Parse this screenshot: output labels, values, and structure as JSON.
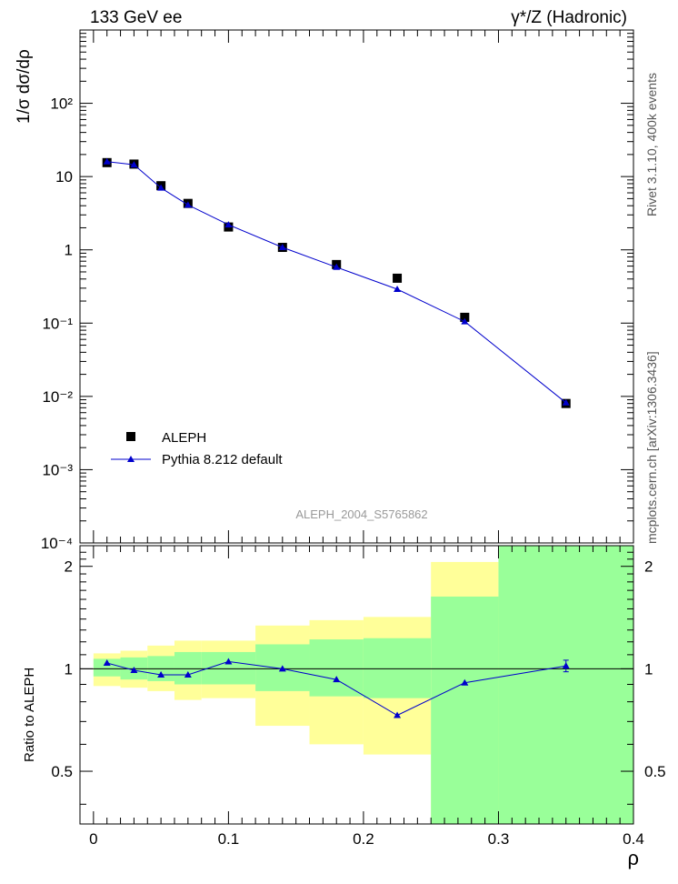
{
  "header": {
    "left": "133 GeV ee",
    "right": "γ*/Z (Hadronic)"
  },
  "side_text": {
    "top": "Rivet 3.1.10,  400k events",
    "bottom": "mcplots.cern.ch [arXiv:1306.3436]"
  },
  "watermark": "ALEPH_2004_S5765862",
  "legend": {
    "data_label": "ALEPH",
    "mc_label": "Pythia 8.212 default"
  },
  "colors": {
    "mc": "#0000cc",
    "data": "#000000",
    "band_inner": "#99ff99",
    "band_outer": "#ffff99"
  },
  "chart_data": [
    {
      "type": "scatter",
      "title": "",
      "ylabel": "1/σ  dσ/dρ",
      "xlabel": "",
      "yscale": "log",
      "ylim": [
        0.0001,
        1000
      ],
      "xlim": [
        -0.01,
        0.4
      ],
      "ytick_labels": [
        "10⁻⁴",
        "10⁻³",
        "10⁻²",
        "10⁻¹",
        "1",
        "10",
        "10²"
      ],
      "series": [
        {
          "name": "ALEPH",
          "x": [
            0.01,
            0.03,
            0.05,
            0.07,
            0.1,
            0.14,
            0.18,
            0.225,
            0.275,
            0.35
          ],
          "y": [
            15.5,
            14.8,
            7.5,
            4.3,
            2.05,
            1.08,
            0.63,
            0.41,
            0.12,
            0.008
          ]
        },
        {
          "name": "Pythia 8.212 default",
          "x": [
            0.01,
            0.03,
            0.05,
            0.07,
            0.1,
            0.14,
            0.18,
            0.225,
            0.275,
            0.35
          ],
          "y": [
            16.0,
            14.5,
            7.0,
            4.1,
            2.2,
            1.08,
            0.58,
            0.29,
            0.105,
            0.0082
          ]
        }
      ]
    },
    {
      "type": "line",
      "title": "",
      "ylabel": "Ratio to ALEPH",
      "xlabel": "ρ",
      "ylim": [
        0.35,
        2.3
      ],
      "xlim": [
        -0.01,
        0.4
      ],
      "ytick_labels": [
        "0.5",
        "1",
        "2"
      ],
      "xtick_labels": [
        "0",
        "0.1",
        "0.2",
        "0.3",
        "0.4"
      ],
      "bin_edges": [
        0,
        0.02,
        0.04,
        0.06,
        0.08,
        0.12,
        0.16,
        0.2,
        0.25,
        0.3,
        0.4
      ],
      "band_inner_low": [
        0.95,
        0.93,
        0.92,
        0.9,
        0.9,
        0.86,
        0.83,
        0.82,
        0.33,
        0.33
      ],
      "band_inner_high": [
        1.07,
        1.08,
        1.09,
        1.12,
        1.12,
        1.18,
        1.22,
        1.23,
        1.63,
        2.3
      ],
      "band_outer_low": [
        0.89,
        0.88,
        0.86,
        0.81,
        0.82,
        0.68,
        0.6,
        0.56,
        0.33,
        0.41
      ],
      "band_outer_high": [
        1.11,
        1.13,
        1.17,
        1.21,
        1.21,
        1.34,
        1.39,
        1.42,
        2.06,
        2.3
      ],
      "series": [
        {
          "name": "Pythia 8.212 default",
          "x": [
            0.01,
            0.03,
            0.05,
            0.07,
            0.1,
            0.14,
            0.18,
            0.225,
            0.275,
            0.35
          ],
          "y": [
            1.04,
            0.99,
            0.96,
            0.96,
            1.05,
            1.0,
            0.93,
            0.73,
            0.91,
            1.02
          ],
          "yerr": [
            0.0,
            0.0,
            0.0,
            0.0,
            0.0,
            0.0,
            0.0,
            0.0,
            0.0,
            0.04
          ]
        }
      ]
    }
  ]
}
